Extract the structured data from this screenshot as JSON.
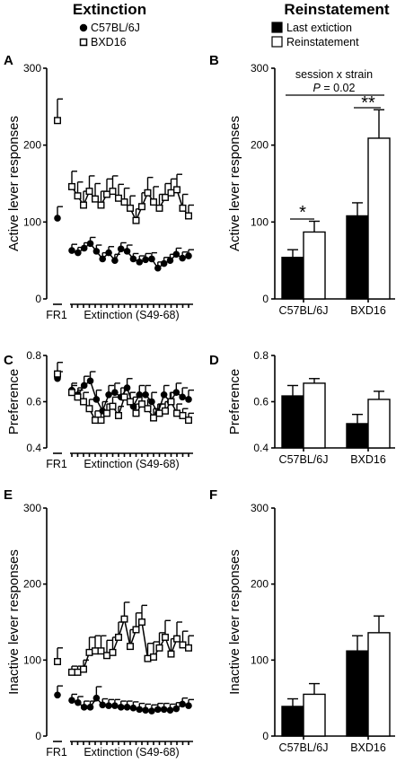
{
  "figure": {
    "col_headers": {
      "left": "Extinction",
      "right": "Reinstatement"
    },
    "left_legend": [
      {
        "name": "C57BL/6J",
        "marker": "filled-circle"
      },
      {
        "name": "BXD16",
        "marker": "open-square"
      }
    ],
    "right_legend": [
      {
        "name": "Last extiction",
        "fill": "#000000"
      },
      {
        "name": "Reinstatement",
        "fill": "#ffffff"
      }
    ]
  },
  "chart_data": [
    {
      "panel": "A",
      "type": "line",
      "ylabel": "Active lever responses",
      "ylim": [
        0,
        300
      ],
      "yticks": [
        "0",
        "100",
        "200",
        "300"
      ],
      "xlabel_fr1": "FR1",
      "xlabel_ext": "Extinction (S49-68)",
      "series": [
        {
          "name": "C57BL/6J",
          "fr1": {
            "y": 105,
            "err": 15
          },
          "values": [
            63,
            60,
            66,
            72,
            62,
            52,
            60,
            50,
            65,
            62,
            52,
            48,
            51,
            52,
            40,
            46,
            50,
            58,
            53,
            56
          ],
          "errors": [
            8,
            7,
            7,
            8,
            8,
            8,
            8,
            8,
            8,
            8,
            7,
            8,
            8,
            8,
            8,
            8,
            8,
            8,
            8,
            8
          ]
        },
        {
          "name": "BXD16",
          "fr1": {
            "y": 232,
            "err": 28
          },
          "values": [
            146,
            134,
            122,
            140,
            130,
            122,
            136,
            140,
            131,
            126,
            118,
            102,
            120,
            138,
            126,
            118,
            132,
            138,
            142,
            118,
            108
          ],
          "errors": [
            20,
            18,
            18,
            20,
            20,
            18,
            20,
            20,
            18,
            18,
            16,
            15,
            18,
            20,
            20,
            18,
            18,
            18,
            20,
            18,
            14
          ]
        }
      ]
    },
    {
      "panel": "B",
      "type": "bar",
      "ylabel": "Active lever responses",
      "ylim": [
        0,
        300
      ],
      "yticks": [
        "0",
        "100",
        "200",
        "300"
      ],
      "categories": [
        "C57BL/6J",
        "BXD16"
      ],
      "series": [
        {
          "name": "Last extiction",
          "values": [
            54,
            108
          ],
          "errors": [
            10,
            17
          ]
        },
        {
          "name": "Reinstatement",
          "values": [
            87,
            209
          ],
          "errors": [
            14,
            37
          ]
        }
      ],
      "annotations": {
        "effect": "session x strain",
        "p_label": "P",
        "p_value": "= 0.02",
        "sig1": "*",
        "sig2": "**"
      }
    },
    {
      "panel": "C",
      "type": "line",
      "ylabel": "Preference",
      "ylim": [
        0.4,
        0.8
      ],
      "yticks": [
        "0.4",
        "0.6",
        "0.8"
      ],
      "xlabel_fr1": "FR1",
      "xlabel_ext": "Extinction (S49-68)",
      "series": [
        {
          "name": "C57BL/6J",
          "fr1": {
            "y": 0.7,
            "err": 0.03
          },
          "values": [
            0.65,
            0.63,
            0.67,
            0.69,
            0.61,
            0.56,
            0.63,
            0.64,
            0.62,
            0.66,
            0.58,
            0.63,
            0.63,
            0.6,
            0.55,
            0.63,
            0.6,
            0.64,
            0.62,
            0.61
          ],
          "errors": [
            0.03,
            0.03,
            0.04,
            0.04,
            0.04,
            0.04,
            0.04,
            0.04,
            0.04,
            0.04,
            0.04,
            0.04,
            0.04,
            0.04,
            0.04,
            0.04,
            0.04,
            0.04,
            0.04,
            0.04
          ]
        },
        {
          "name": "BXD16",
          "fr1": {
            "y": 0.72,
            "err": 0.05
          },
          "values": [
            0.64,
            0.62,
            0.6,
            0.57,
            0.52,
            0.52,
            0.55,
            0.58,
            0.54,
            0.62,
            0.6,
            0.55,
            0.59,
            0.57,
            0.53,
            0.55,
            0.56,
            0.6,
            0.55,
            0.54,
            0.52
          ],
          "errors": [
            0.03,
            0.03,
            0.04,
            0.04,
            0.04,
            0.04,
            0.04,
            0.04,
            0.04,
            0.04,
            0.04,
            0.04,
            0.04,
            0.04,
            0.04,
            0.04,
            0.04,
            0.04,
            0.04,
            0.03,
            0.03
          ]
        }
      ]
    },
    {
      "panel": "D",
      "type": "bar",
      "ylabel": "Preference",
      "ylim": [
        0.4,
        0.8
      ],
      "yticks": [
        "0.4",
        "0.6",
        "0.8"
      ],
      "categories": [
        "C57BL/6J",
        "BXD16"
      ],
      "series": [
        {
          "name": "Last extiction",
          "values": [
            0.625,
            0.505
          ],
          "errors": [
            0.045,
            0.04
          ]
        },
        {
          "name": "Reinstatement",
          "values": [
            0.68,
            0.61
          ],
          "errors": [
            0.02,
            0.035
          ]
        }
      ]
    },
    {
      "panel": "E",
      "type": "line",
      "ylabel": "Inactive lever responses",
      "ylim": [
        0,
        300
      ],
      "yticks": [
        "0",
        "100",
        "200",
        "300"
      ],
      "xlabel_fr1": "FR1",
      "xlabel_ext": "Extinction (S49-68)",
      "series": [
        {
          "name": "C57BL/6J",
          "fr1": {
            "y": 54,
            "err": 12
          },
          "values": [
            47,
            44,
            38,
            38,
            50,
            41,
            40,
            40,
            38,
            38,
            37,
            35,
            34,
            33,
            35,
            35,
            34,
            36,
            42,
            40
          ],
          "errors": [
            8,
            8,
            8,
            8,
            15,
            8,
            8,
            8,
            8,
            8,
            8,
            8,
            8,
            8,
            8,
            8,
            8,
            8,
            8,
            8
          ]
        },
        {
          "name": "BXD16",
          "fr1": {
            "y": 98,
            "err": 18
          },
          "values": [
            84,
            84,
            88,
            110,
            112,
            112,
            106,
            110,
            130,
            154,
            118,
            140,
            150,
            102,
            104,
            116,
            130,
            108,
            128,
            120,
            116
          ],
          "errors": [
            8,
            8,
            12,
            20,
            20,
            20,
            20,
            20,
            20,
            22,
            22,
            22,
            22,
            20,
            20,
            20,
            22,
            20,
            22,
            18,
            16
          ]
        }
      ]
    },
    {
      "panel": "F",
      "type": "bar",
      "ylabel": "Inactive lever responses",
      "ylim": [
        0,
        300
      ],
      "yticks": [
        "0",
        "100",
        "200",
        "300"
      ],
      "categories": [
        "C57BL/6J",
        "BXD16"
      ],
      "series": [
        {
          "name": "Last extiction",
          "values": [
            39,
            112
          ],
          "errors": [
            10,
            20
          ]
        },
        {
          "name": "Reinstatement",
          "values": [
            55,
            136
          ],
          "errors": [
            14,
            22
          ]
        }
      ]
    }
  ]
}
